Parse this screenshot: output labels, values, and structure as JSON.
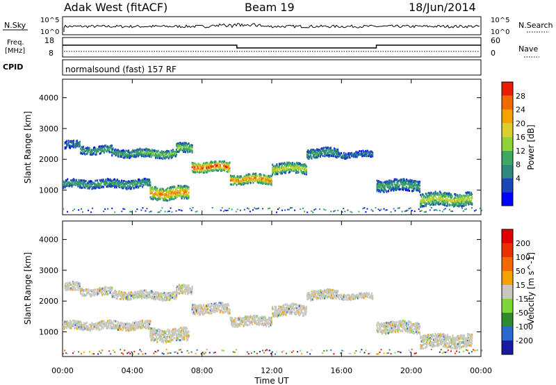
{
  "header": {
    "title": "Adak West (fitACF)",
    "beam": "Beam 19",
    "date": "18/Jun/2014"
  },
  "sky_panel": {
    "left_label": "N.Sky",
    "right_label": "N.Search",
    "left_ticks": [
      "10^5",
      "10^0"
    ],
    "right_ticks": [
      "10^5",
      "10^0"
    ]
  },
  "freq_panel": {
    "label_line1": "Freq.",
    "label_line2": "[MHz]",
    "left_ticks": [
      "18",
      "8"
    ],
    "right_ticks": [
      "60",
      "0"
    ],
    "right_label": "Nave",
    "freq_steps": [
      {
        "start": 0.0,
        "end": 10.0,
        "mhz": 15.5
      },
      {
        "start": 10.0,
        "end": 18.0,
        "mhz": 13.5
      },
      {
        "start": 18.0,
        "end": 24.0,
        "mhz": 15.5
      }
    ]
  },
  "cpid": {
    "label": "CPID",
    "program": "normalsound (fast) 157 RF"
  },
  "chart_data": [
    {
      "type": "heatmap",
      "panel": "power",
      "ylabel": "Slant Range [km]",
      "ylim": [
        200,
        4600
      ],
      "yticks": [
        "1000",
        "2000",
        "3000",
        "4000"
      ],
      "xlim_hours": [
        0,
        24
      ],
      "colorbar": {
        "label": "Power [dB]",
        "ticks": [
          "28",
          "24",
          "20",
          "16",
          "12",
          "8",
          "4"
        ],
        "colors": [
          "#0000ff",
          "#1a47b8",
          "#2f8a7e",
          "#3ea860",
          "#8fd23a",
          "#d9d030",
          "#f5a100",
          "#f06a00",
          "#e81c00"
        ]
      },
      "bands": [
        {
          "start": 0.1,
          "end": 1.0,
          "km": 2450,
          "width": 260,
          "level": 2
        },
        {
          "start": 1.0,
          "end": 2.8,
          "km": 2300,
          "width": 240,
          "level": 3
        },
        {
          "start": 2.8,
          "end": 4.5,
          "km": 2200,
          "width": 250,
          "level": 3
        },
        {
          "start": 4.5,
          "end": 6.5,
          "km": 2180,
          "width": 260,
          "level": 4
        },
        {
          "start": 6.5,
          "end": 7.4,
          "km": 2350,
          "width": 300,
          "level": 4
        },
        {
          "start": 7.4,
          "end": 9.6,
          "km": 1750,
          "width": 320,
          "level": 8
        },
        {
          "start": 9.6,
          "end": 12.0,
          "km": 1350,
          "width": 300,
          "level": 7
        },
        {
          "start": 12.0,
          "end": 14.0,
          "km": 1700,
          "width": 340,
          "level": 5
        },
        {
          "start": 14.0,
          "end": 15.8,
          "km": 2200,
          "width": 300,
          "level": 3
        },
        {
          "start": 15.8,
          "end": 17.8,
          "km": 2150,
          "width": 180,
          "level": 2
        },
        {
          "start": 0.0,
          "end": 5.0,
          "km": 1200,
          "width": 260,
          "level": 3
        },
        {
          "start": 5.0,
          "end": 7.2,
          "km": 900,
          "width": 420,
          "level": 7
        },
        {
          "start": 18.0,
          "end": 20.5,
          "km": 1150,
          "width": 360,
          "level": 3
        },
        {
          "start": 20.5,
          "end": 23.5,
          "km": 700,
          "width": 420,
          "level": 5
        }
      ]
    },
    {
      "type": "heatmap",
      "panel": "velocity",
      "ylabel": "Slant Range [km]",
      "ylim": [
        200,
        4600
      ],
      "yticks": [
        "1000",
        "2000",
        "3000",
        "4000"
      ],
      "xlabel": "Time UT",
      "xticks": [
        "00:00",
        "04:00",
        "08:00",
        "12:00",
        "16:00",
        "20:00",
        "00:00"
      ],
      "xlim_hours": [
        0,
        24
      ],
      "colorbar": {
        "label": "Velocity [m s^-1]",
        "ticks": [
          "200",
          "100",
          "50",
          "15",
          "-15",
          "-50",
          "-100",
          "-200"
        ],
        "colors": [
          "#1a1aa0",
          "#2a6acc",
          "#2f8a2f",
          "#7ed63a",
          "#c8c8c0",
          "#f5a100",
          "#f06a00",
          "#e83000",
          "#e00000"
        ]
      }
    }
  ]
}
